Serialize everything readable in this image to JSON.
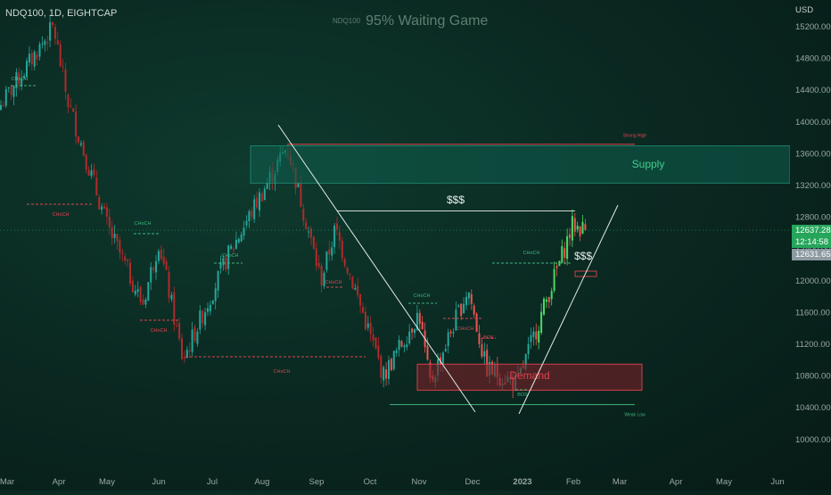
{
  "header": {
    "ticker": "NDQ100, 1D, EIGHTCAP",
    "title_symbol": "NDQ100",
    "title": "95% Waiting Game"
  },
  "price_axis": {
    "currency": "USD",
    "ticks": [
      "15200.00",
      "14800.00",
      "14400.00",
      "14000.00",
      "13600.00",
      "13200.00",
      "12800.00",
      "12400.00",
      "12000.00",
      "11600.00",
      "11200.00",
      "10800.00",
      "10400.00",
      "10000.00"
    ],
    "current_price": "12637.28",
    "countdown": "12:14:58",
    "previous_price": "12631.65"
  },
  "time_axis": {
    "labels": [
      "Mar",
      "Apr",
      "May",
      "Jun",
      "Jul",
      "Aug",
      "Sep",
      "Oct",
      "Nov",
      "Dec",
      "2023",
      "Feb",
      "Mar",
      "Apr",
      "May",
      "Jun"
    ]
  },
  "annotations": {
    "supply": "Supply",
    "demand": "Demand",
    "strong_high": "Strong High",
    "weak_low": "Weak Low",
    "dollars_top": "$$$",
    "dollars_right": "$$$",
    "choch": "CHoCH",
    "bos": "BOS"
  },
  "colors": {
    "up": "#26a69a",
    "up_bright": "#4cd964",
    "down": "#ef5350",
    "down_dark": "#b22a2a",
    "supply_fill": "#0f5e4e",
    "demand_fill": "#7a1f28",
    "tag_green": "#26a65b",
    "tag_gray": "#8c9aa0"
  },
  "chart_data": {
    "type": "candlestick",
    "instrument": "NDQ100",
    "timeframe": "1D",
    "price_range": [
      9800,
      15400
    ],
    "approx_close_path": [
      {
        "x": "Mar",
        "close": 14200
      },
      {
        "x": "Apr",
        "close": 15200
      },
      {
        "x": "Apr",
        "close": 14300
      },
      {
        "x": "May",
        "close": 12700
      },
      {
        "x": "May",
        "close": 11700
      },
      {
        "x": "Jun",
        "close": 12500
      },
      {
        "x": "Jun",
        "close": 11000
      },
      {
        "x": "Jul",
        "close": 12300
      },
      {
        "x": "Aug",
        "close": 13700
      },
      {
        "x": "Sep",
        "close": 12000
      },
      {
        "x": "Sep",
        "close": 12650
      },
      {
        "x": "Oct",
        "close": 10800
      },
      {
        "x": "Nov",
        "close": 11600
      },
      {
        "x": "Nov",
        "close": 10700
      },
      {
        "x": "Dec",
        "close": 11900
      },
      {
        "x": "Dec",
        "close": 10900
      },
      {
        "x": "2023",
        "close": 10700
      },
      {
        "x": "Feb",
        "close": 12700
      },
      {
        "x": "Feb",
        "close": 12637
      }
    ],
    "zones": [
      {
        "label": "Supply",
        "from": 13230,
        "to": 13700
      },
      {
        "label": "Demand",
        "from": 10620,
        "to": 10950
      }
    ],
    "levels": [
      {
        "label": "Strong High",
        "price": 13720
      },
      {
        "label": "$$$",
        "price": 12880
      },
      {
        "label": "Weak Low",
        "price": 10440
      }
    ],
    "last_price": 12637.28
  }
}
